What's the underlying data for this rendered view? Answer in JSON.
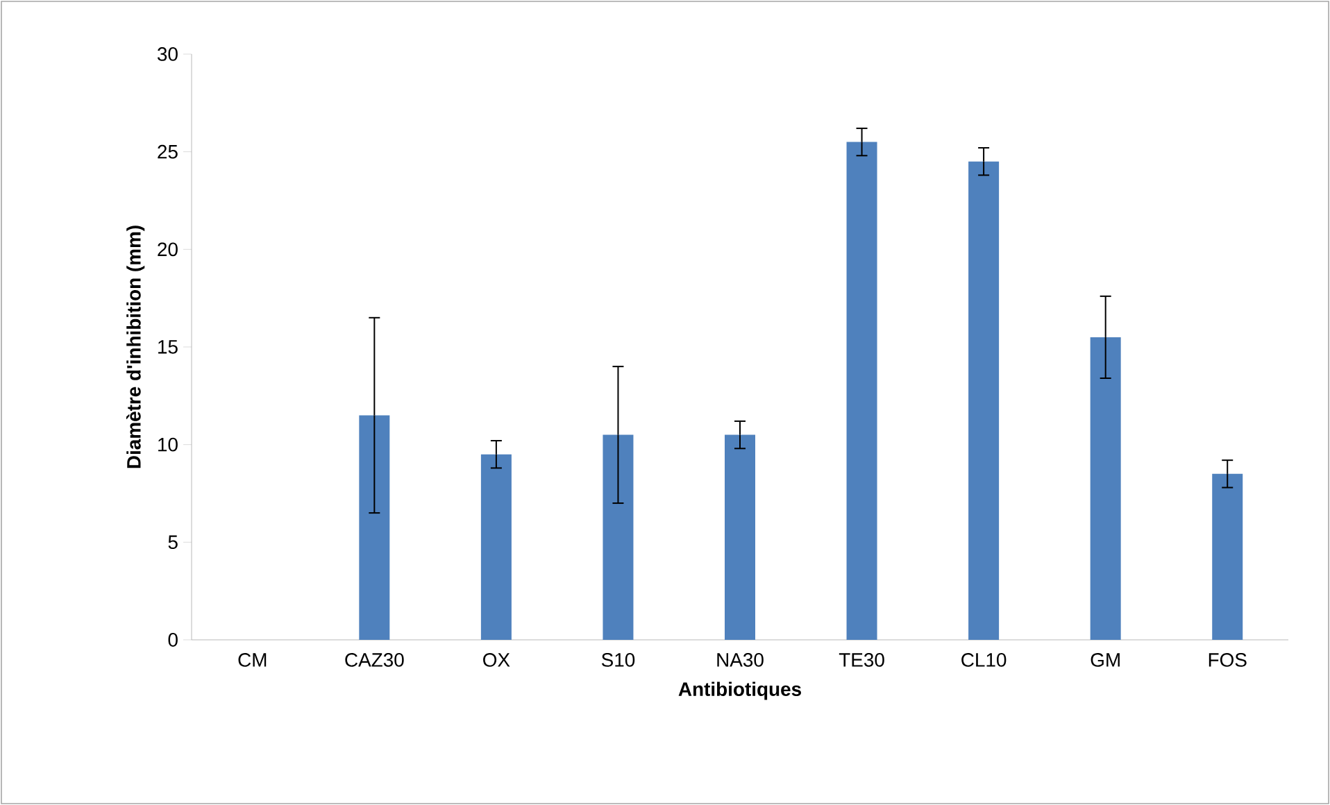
{
  "chart_data": {
    "type": "bar",
    "xlabel": "Antibiotiques",
    "ylabel": "Diamètre d'inhibition (mm)",
    "categories": [
      "CM",
      "CAZ30",
      "OX",
      "S10",
      "NA30",
      "TE30",
      "CL10",
      "GM",
      "FOS"
    ],
    "values": [
      0,
      11.5,
      9.5,
      10.5,
      10.5,
      25.5,
      24.5,
      15.5,
      8.5
    ],
    "errors": [
      null,
      5,
      0.7,
      3.5,
      0.7,
      0.7,
      0.7,
      2.1,
      0.7
    ],
    "color": "#4f81bd",
    "ylim": [
      0,
      30
    ],
    "yticks": [
      0,
      5,
      10,
      15,
      20,
      25,
      30
    ],
    "grid": false
  }
}
